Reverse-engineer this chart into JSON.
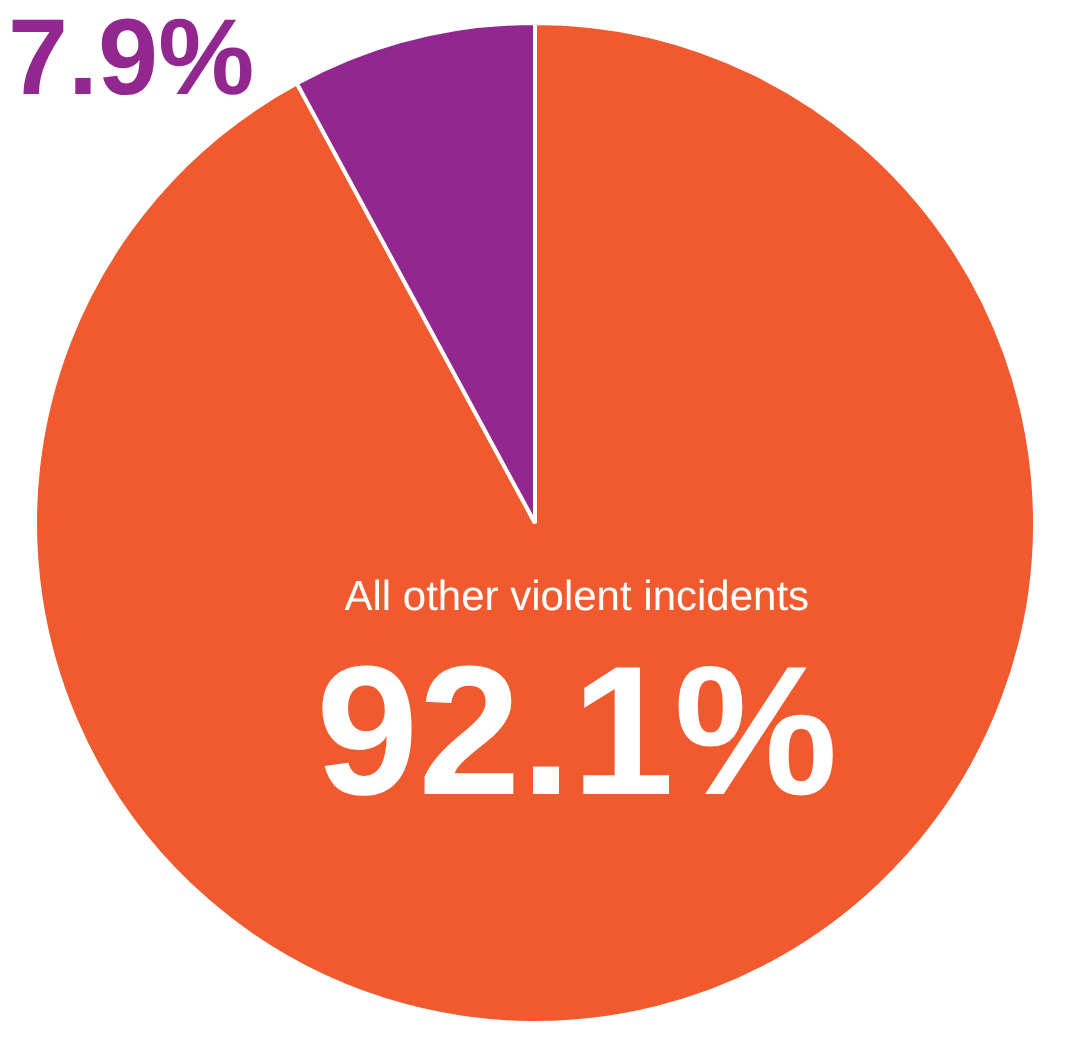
{
  "chart_data": {
    "type": "pie",
    "categories": [
      "All other violent incidents",
      null
    ],
    "values": [
      92.1,
      7.9
    ],
    "colors": [
      "#f05a2e",
      "#92278f"
    ],
    "value_labels": [
      "92.1%",
      "7.9%"
    ]
  }
}
